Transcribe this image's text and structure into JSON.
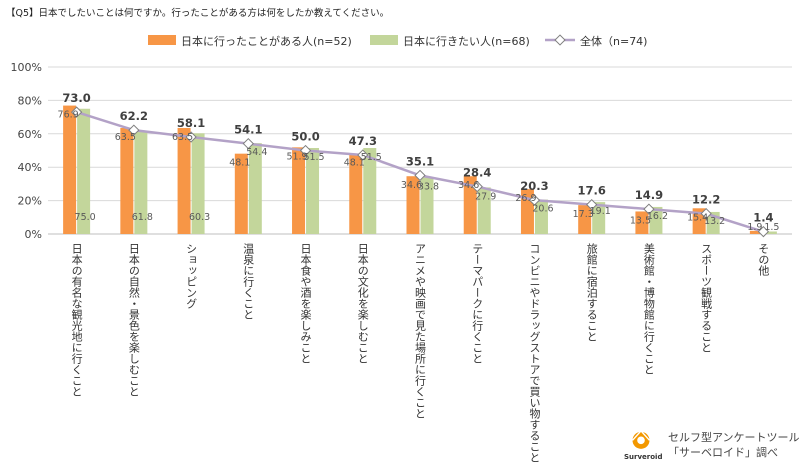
{
  "question": "【Q5】日本でしたいことは何ですか。行ったことがある方は何をしたか教えてください。",
  "chart_data": {
    "type": "bar",
    "title": "【Q5】日本でしたいことは何ですか。行ったことがある方は何をしたか教えてください。",
    "categories": [
      "日本の有名な観光地に行くこと",
      "日本の自然・景色を楽しむこと",
      "ショッピング",
      "温泉に行くこと",
      "日本食や酒を楽しみこと",
      "日本の文化を楽しむこと",
      "アニメや映画で見た場所に行くこと",
      "テーマパークに行くこと",
      "コンビニやドラッグストアで買い物すること",
      "旅館に宿泊すること",
      "美術館・博物館に行くこと",
      "スポーツ観戦すること",
      "その他"
    ],
    "series": [
      {
        "name": "日本に行ったことがある人(n=52)",
        "type": "bar",
        "values": [
          76.9,
          63.5,
          63.5,
          48.1,
          51.9,
          48.1,
          34.6,
          34.6,
          26.9,
          17.3,
          13.5,
          15.4,
          1.9
        ]
      },
      {
        "name": "日本に行きたい人(n=68)",
        "type": "bar",
        "values": [
          75.0,
          61.8,
          60.3,
          54.4,
          51.5,
          51.5,
          33.8,
          27.9,
          20.6,
          19.1,
          16.2,
          13.2,
          1.5
        ]
      },
      {
        "name": "全体（n=74)",
        "type": "line",
        "values": [
          73.0,
          62.2,
          58.1,
          54.1,
          50.0,
          47.3,
          35.1,
          28.4,
          20.3,
          17.6,
          14.9,
          12.2,
          1.4
        ]
      }
    ],
    "yticks": [
      "0%",
      "20%",
      "40%",
      "60%",
      "80%",
      "100%"
    ],
    "ylim": [
      0,
      100
    ],
    "grid": true,
    "legend": "top",
    "colors": {
      "series1": "#F79646",
      "series2": "#C3D69B",
      "line": "#B3A2C7",
      "marker_fill": "#ffffff",
      "grid": "#D9D9D9",
      "axis": "#BFBFBF"
    }
  },
  "brand": {
    "text_line1": "セルフ型アンケートツール",
    "text_line2": "「サーベロイド」調べ",
    "name": "Surveroid",
    "logo_color": "#F39800"
  }
}
